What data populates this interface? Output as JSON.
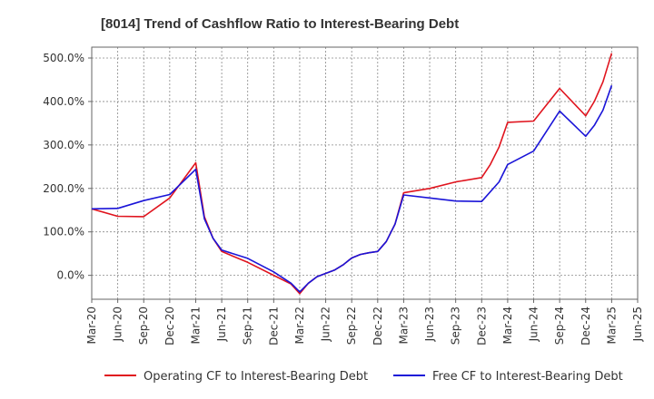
{
  "chart_data": {
    "type": "line",
    "title": "[8014]  Trend of Cashflow Ratio to Interest-Bearing Debt",
    "xlabel": "",
    "ylabel": "",
    "ylim": [
      -55,
      525
    ],
    "yticks": [
      0,
      100,
      200,
      300,
      400,
      500
    ],
    "ytick_labels": [
      "0.0%",
      "100.0%",
      "200.0%",
      "300.0%",
      "400.0%",
      "500.0%"
    ],
    "xticks": [
      "Mar-20",
      "Jun-20",
      "Sep-20",
      "Dec-20",
      "Mar-21",
      "Jun-21",
      "Sep-21",
      "Dec-21",
      "Mar-22",
      "Jun-22",
      "Sep-22",
      "Dec-22",
      "Mar-23",
      "Jun-23",
      "Sep-23",
      "Dec-23",
      "Mar-24",
      "Jun-24",
      "Sep-24",
      "Dec-24",
      "Mar-25",
      "Jun-25"
    ],
    "grid": true,
    "legend_position": "bottom",
    "series": [
      {
        "name": "Operating CF to Interest-Bearing Debt",
        "color": "#e0141e",
        "values": [
          [
            0,
            153
          ],
          [
            3,
            136
          ],
          [
            6,
            135
          ],
          [
            9,
            178
          ],
          [
            12,
            259
          ],
          [
            13,
            135
          ],
          [
            14,
            85
          ],
          [
            15,
            55
          ],
          [
            18,
            30
          ],
          [
            21,
            0
          ],
          [
            23,
            -20
          ],
          [
            24,
            -42
          ],
          [
            25,
            -18
          ],
          [
            26,
            -3
          ],
          [
            28,
            12
          ],
          [
            29,
            24
          ],
          [
            30,
            40
          ],
          [
            31,
            48
          ],
          [
            32,
            52
          ],
          [
            33,
            55
          ],
          [
            34,
            78
          ],
          [
            35,
            118
          ],
          [
            36,
            190
          ],
          [
            39,
            200
          ],
          [
            42,
            215
          ],
          [
            45,
            225
          ],
          [
            46,
            255
          ],
          [
            47,
            295
          ],
          [
            48,
            352
          ],
          [
            51,
            355
          ],
          [
            54,
            430
          ],
          [
            57,
            367
          ],
          [
            58,
            400
          ],
          [
            59,
            445
          ],
          [
            60,
            511
          ]
        ]
      },
      {
        "name": "Free CF to Interest-Bearing Debt",
        "color": "#1a14d8",
        "values": [
          [
            0,
            153
          ],
          [
            3,
            154
          ],
          [
            6,
            172
          ],
          [
            9,
            186
          ],
          [
            12,
            244
          ],
          [
            13,
            130
          ],
          [
            14,
            85
          ],
          [
            15,
            58
          ],
          [
            18,
            39
          ],
          [
            21,
            8
          ],
          [
            23,
            -18
          ],
          [
            24,
            -38
          ],
          [
            25,
            -18
          ],
          [
            26,
            -3
          ],
          [
            28,
            12
          ],
          [
            29,
            24
          ],
          [
            30,
            40
          ],
          [
            31,
            48
          ],
          [
            32,
            52
          ],
          [
            33,
            55
          ],
          [
            34,
            78
          ],
          [
            35,
            118
          ],
          [
            36,
            185
          ],
          [
            39,
            178
          ],
          [
            42,
            171
          ],
          [
            45,
            170
          ],
          [
            47,
            215
          ],
          [
            48,
            255
          ],
          [
            51,
            286
          ],
          [
            54,
            378
          ],
          [
            57,
            320
          ],
          [
            58,
            345
          ],
          [
            59,
            380
          ],
          [
            60,
            437
          ]
        ]
      }
    ]
  }
}
